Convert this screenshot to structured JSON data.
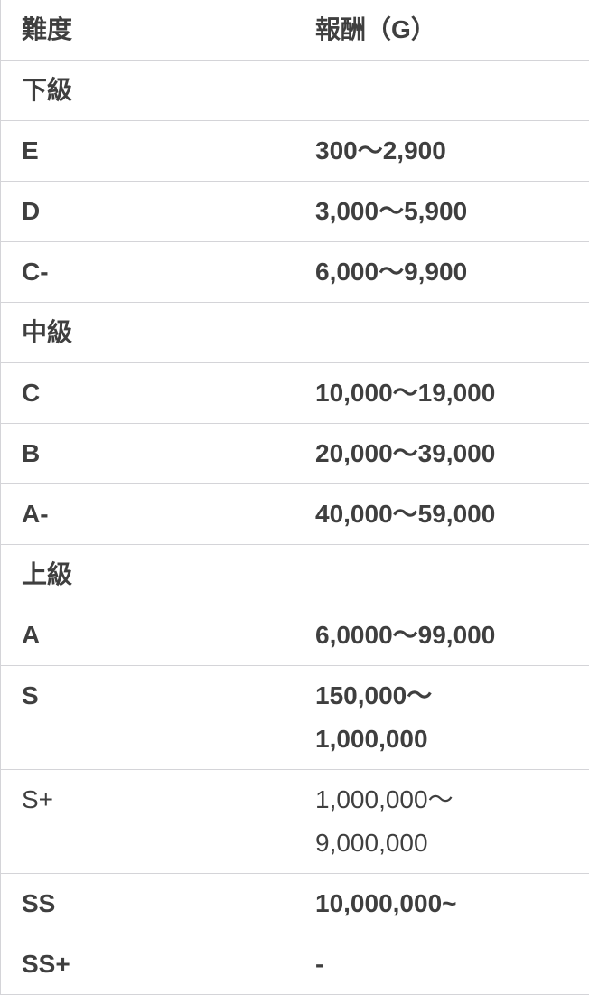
{
  "colors": {
    "text": "#3f3f3f",
    "border": "#d4d4d8",
    "background": "#ffffff"
  },
  "table": {
    "columns": [
      {
        "label": "難度"
      },
      {
        "label": "報酬（G）"
      }
    ],
    "rows": [
      {
        "rank": "下級",
        "reward": ""
      },
      {
        "rank": "E",
        "reward": "300～2,900"
      },
      {
        "rank": "D",
        "reward": "3,000～5,900"
      },
      {
        "rank": "C-",
        "reward": "6,000～9,900"
      },
      {
        "rank": "中級",
        "reward": ""
      },
      {
        "rank": "C",
        "reward": "10,000～19,000"
      },
      {
        "rank": "B",
        "reward": "20,000～39,000"
      },
      {
        "rank": "A-",
        "reward": "40,000～59,000"
      },
      {
        "rank": "上級",
        "reward": ""
      },
      {
        "rank": "A",
        "reward": "6,0000～99,000"
      },
      {
        "rank": "S",
        "reward": "150,000～\n1,000,000"
      },
      {
        "rank": "S+",
        "reward": "1,000,000～\n9,000,000"
      },
      {
        "rank": "SS",
        "reward": "10,000,000~"
      },
      {
        "rank": "SS+",
        "reward": "-"
      }
    ]
  }
}
